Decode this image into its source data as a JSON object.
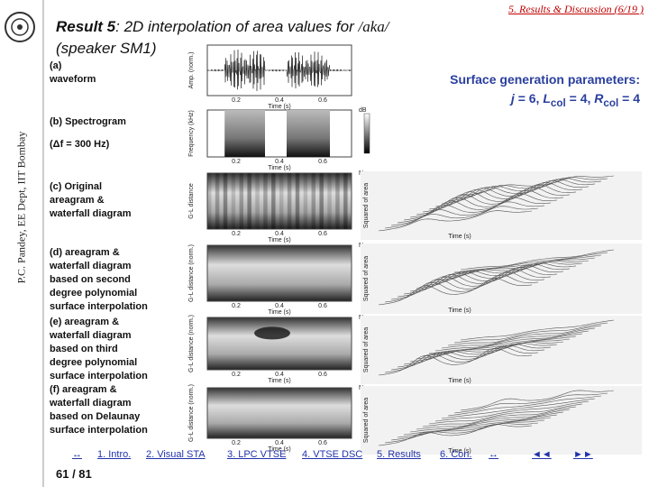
{
  "sidebar": {
    "affiliation": "P.C. Pandey, EE Dept, IIT Bombay"
  },
  "header": {
    "section": "5. Results & Discussion (6/19 )",
    "title_bold": "Result 5",
    "title_rest": ": 2D interpolation of area values for ",
    "title_phoneme": "/aka/",
    "title_line2": "(speaker SM1)"
  },
  "parameters": {
    "heading": "Surface generation parameters:",
    "j": "j",
    "j_value": " = 6, ",
    "l": "L",
    "l_sub": "col",
    "l_value": " = 4, ",
    "r": "R",
    "r_sub": "col",
    "r_value": " = 4"
  },
  "panels": [
    {
      "lines": [
        "(a)",
        "waveform"
      ]
    },
    {
      "lines": [
        "(b) Spectrogram",
        "(Δf = 300 Hz)"
      ]
    },
    {
      "lines": [
        "(c) Original",
        "areagram &",
        "waterfall diagram"
      ]
    },
    {
      "lines": [
        "(d) areagram &",
        "waterfall diagram",
        "based on second",
        "degree polynomial",
        "surface interpolation"
      ]
    },
    {
      "lines": [
        "(e) areagram &",
        "waterfall diagram",
        "based on third",
        "degree polynomial",
        "surface interpolation"
      ]
    },
    {
      "lines": [
        "(f) areagram &",
        "waterfall diagram",
        "based on Delaunay",
        "surface interpolation"
      ]
    }
  ],
  "figures": [
    {
      "ylabel": "Amp. (norm.)",
      "xlabel": "Time (s)",
      "ticks": [
        "0.2",
        "0.4",
        "0.6"
      ]
    },
    {
      "ylabel": "Frequency (kHz)",
      "xlabel": "Time (s)",
      "ticks": [
        "0.2",
        "0.4",
        "0.6"
      ],
      "scale": "dB"
    },
    {
      "ylabel": "G-L distance",
      "xlabel": "Time (s)",
      "ticks": [
        "0.2",
        "0.4",
        "0.6"
      ],
      "scale": "Norm."
    },
    {
      "ylabel": "G-L distance (norm.)",
      "xlabel": "Time (s)",
      "ticks": [
        "0.2",
        "0.4",
        "0.6"
      ],
      "scale": "Norm."
    },
    {
      "ylabel": "G-L distance (norm.)",
      "xlabel": "Time (s)",
      "ticks": [
        "0.2",
        "0.4",
        "0.6"
      ],
      "scale": "Norm."
    },
    {
      "ylabel": "G-L distance (norm.)",
      "xlabel": "Time (s)",
      "ticks": [
        "0.2",
        "0.4",
        "0.6"
      ],
      "scale": "Norm."
    }
  ],
  "waterfalls": [
    {
      "zlabel": "Squared of area",
      "xlabel": "Time (s)"
    },
    {
      "zlabel": "Squared of area",
      "xlabel": "Time (s)"
    },
    {
      "zlabel": "Squared of area",
      "xlabel": "Time (s)"
    },
    {
      "zlabel": "Squared of area",
      "xlabel": "Time (s)"
    }
  ],
  "nav": {
    "links": [
      "↔",
      "1. Intro.",
      "2. Visual STA",
      "3. LPC VTSE",
      "4. VTSE DSC",
      "5. Results",
      "6. Con.",
      "↔",
      "◄◄",
      "►►"
    ],
    "page": "61 / 81"
  }
}
